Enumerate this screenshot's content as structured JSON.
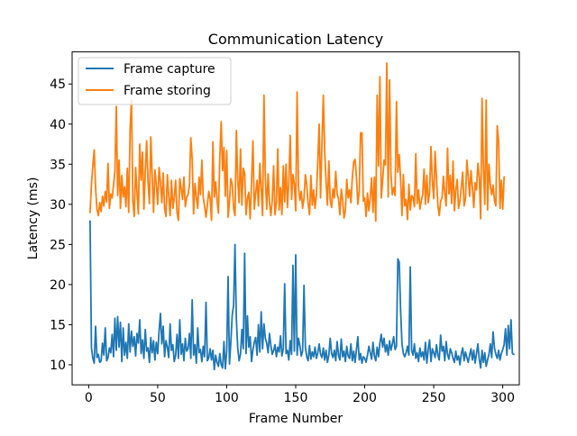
{
  "chart_data": {
    "type": "line",
    "title": "Communication Latency",
    "xlabel": "Frame Number",
    "ylabel": "Latency (ms)",
    "xlim": [
      -12,
      312
    ],
    "ylim": [
      7.5,
      49.0
    ],
    "xticks": [
      0,
      50,
      100,
      150,
      200,
      250,
      300
    ],
    "yticks": [
      10,
      15,
      20,
      25,
      30,
      35,
      40,
      45
    ],
    "grid": false,
    "legend": "upper-left",
    "x_start": 1,
    "series": [
      {
        "name": "Frame capture",
        "color": "#1f77b4",
        "values": [
          27.9,
          12.2,
          10.8,
          10.2,
          14.8,
          10.9,
          11.3,
          10.3,
          10.5,
          12.7,
          11.2,
          14.6,
          10.5,
          10.9,
          12.1,
          11.5,
          13.8,
          11.0,
          15.8,
          11.8,
          16.0,
          12.2,
          15.3,
          10.4,
          14.6,
          11.2,
          12.8,
          10.8,
          15.1,
          11.6,
          14.2,
          12.3,
          13.5,
          11.1,
          13.9,
          12.7,
          15.6,
          11.4,
          13.1,
          10.8,
          14.4,
          11.7,
          12.1,
          10.3,
          13.4,
          11.5,
          13.0,
          10.6,
          12.8,
          11.4,
          14.2,
          16.4,
          12.6,
          14.8,
          11.0,
          13.0,
          12.2,
          10.9,
          15.1,
          11.8,
          12.5,
          10.4,
          11.2,
          13.8,
          10.8,
          15.6,
          11.3,
          12.6,
          10.5,
          13.3,
          11.7,
          12.0,
          13.9,
          10.8,
          18.1,
          11.2,
          12.5,
          10.2,
          14.6,
          11.5,
          11.9,
          10.4,
          12.3,
          11.0,
          17.8,
          10.5,
          10.9,
          12.0,
          10.6,
          11.8,
          9.4,
          11.2,
          10.3,
          9.8,
          11.4,
          10.0,
          9.6,
          12.9,
          9.5,
          11.7,
          21.0,
          10.1,
          12.8,
          16.2,
          17.4,
          25.0,
          15.7,
          12.1,
          10.5,
          11.3,
          14.4,
          12.0,
          23.9,
          11.4,
          16.1,
          12.2,
          13.5,
          10.4,
          11.9,
          12.8,
          13.4,
          11.2,
          15.0,
          11.6,
          16.6,
          12.0,
          15.1,
          13.3,
          12.7,
          11.5,
          13.9,
          12.4,
          11.3,
          11.8,
          12.5,
          11.0,
          12.2,
          11.6,
          13.6,
          11.1,
          12.0,
          20.1,
          11.4,
          11.8,
          10.6,
          13.0,
          11.3,
          22.4,
          11.7,
          23.7,
          11.2,
          13.3,
          12.4,
          11.1,
          11.7,
          19.9,
          12.2,
          11.0,
          10.5,
          12.4,
          10.7,
          11.6,
          11.0,
          12.2,
          10.8,
          11.5,
          12.6,
          11.3,
          10.9,
          12.1,
          10.6,
          11.8,
          10.3,
          11.2,
          13.3,
          11.4,
          10.9,
          11.8,
          10.5,
          12.9,
          11.2,
          10.6,
          13.2,
          11.0,
          11.7,
          10.4,
          12.3,
          11.1,
          10.8,
          12.6,
          10.5,
          11.7,
          10.3,
          11.9,
          13.5,
          10.6,
          11.4,
          10.2,
          11.0,
          10.8,
          10.3,
          11.2,
          12.3,
          11.5,
          10.7,
          12.8,
          11.1,
          10.5,
          12.2,
          11.0,
          12.7,
          13.8,
          12.2,
          13.3,
          11.6,
          12.5,
          11.2,
          13.0,
          11.8,
          12.6,
          13.5,
          11.9,
          12.3,
          23.2,
          22.8,
          16.8,
          12.6,
          11.4,
          11.0,
          11.5,
          12.3,
          11.2,
          22.2,
          11.8,
          11.2,
          12.6,
          10.8,
          11.5,
          10.4,
          12.1,
          11.0,
          11.6,
          10.6,
          12.8,
          10.2,
          11.9,
          13.1,
          10.4,
          12.0,
          11.5,
          10.9,
          12.5,
          11.2,
          10.6,
          13.7,
          11.7,
          12.3,
          10.5,
          12.9,
          11.3,
          10.7,
          12.0,
          11.5,
          10.8,
          10.3,
          11.7,
          10.6,
          11.1,
          10.0,
          11.4,
          12.1,
          10.5,
          11.6,
          10.9,
          10.3,
          11.2,
          12.0,
          10.6,
          11.8,
          10.2,
          11.4,
          12.6,
          10.7,
          9.6,
          11.8,
          10.3,
          11.5,
          9.8,
          10.6,
          11.3,
          12.6,
          10.9,
          14.1,
          12.1,
          11.3,
          10.8,
          11.8,
          10.6,
          11.4,
          11.9,
          12.5,
          14.5,
          11.2,
          14.9,
          12.0,
          15.6,
          11.4,
          11.3
        ]
      },
      {
        "name": "Frame storing",
        "color": "#ff7f0e",
        "values": [
          29.0,
          32.5,
          34.8,
          36.8,
          32.0,
          29.4,
          28.6,
          30.2,
          29.1,
          31.0,
          29.8,
          31.6,
          30.3,
          35.1,
          29.5,
          31.3,
          30.8,
          32.4,
          34.1,
          42.2,
          31.1,
          35.5,
          29.5,
          33.6,
          30.9,
          32.2,
          29.7,
          34.5,
          29.0,
          39.3,
          43.0,
          30.4,
          28.5,
          34.6,
          31.5,
          28.8,
          37.5,
          33.0,
          36.5,
          29.4,
          34.2,
          37.9,
          32.8,
          30.1,
          38.4,
          33.5,
          29.0,
          34.3,
          32.5,
          30.0,
          34.6,
          32.8,
          30.2,
          33.9,
          29.5,
          28.5,
          33.7,
          31.0,
          28.6,
          33.0,
          29.5,
          30.8,
          33.0,
          29.0,
          28.0,
          33.2,
          32.0,
          30.6,
          33.4,
          29.7,
          30.9,
          31.2,
          32.4,
          38.3,
          35.6,
          28.8,
          32.6,
          30.9,
          29.5,
          33.4,
          31.2,
          35.5,
          30.8,
          29.8,
          28.4,
          30.0,
          31.6,
          30.7,
          28.0,
          37.8,
          30.9,
          32.8,
          30.5,
          28.9,
          35.8,
          40.3,
          34.2,
          37.1,
          31.0,
          36.7,
          28.4,
          30.4,
          33.2,
          32.5,
          29.5,
          28.6,
          39.2,
          33.0,
          30.2,
          36.9,
          29.9,
          34.5,
          33.9,
          28.7,
          30.7,
          31.5,
          28.2,
          32.8,
          37.9,
          29.4,
          31.4,
          33.0,
          29.8,
          35.1,
          31.9,
          28.6,
          43.6,
          33.4,
          29.4,
          33.8,
          30.2,
          28.6,
          30.5,
          34.8,
          28.7,
          30.3,
          36.9,
          29.3,
          32.1,
          28.7,
          34.8,
          30.3,
          35.0,
          29.6,
          32.8,
          38.6,
          30.6,
          33.7,
          32.5,
          29.2,
          44.0,
          32.3,
          30.5,
          31.6,
          29.5,
          30.8,
          33.7,
          32.4,
          30.1,
          28.7,
          33.6,
          29.9,
          31.8,
          29.5,
          31.2,
          35.3,
          40.0,
          30.8,
          37.4,
          43.6,
          36.6,
          32.8,
          29.9,
          35.4,
          30.6,
          29.6,
          31.9,
          30.8,
          34.1,
          31.3,
          30.7,
          28.7,
          31.9,
          30.5,
          28.3,
          29.2,
          33.1,
          30.8,
          31.8,
          30.2,
          33.3,
          35.3,
          35.6,
          33.4,
          30.0,
          31.6,
          38.9,
          38.9,
          30.4,
          30.8,
          28.5,
          31.4,
          29.2,
          30.9,
          33.3,
          29.0,
          33.4,
          27.9,
          43.6,
          34.8,
          45.9,
          30.8,
          33.0,
          35.5,
          34.9,
          47.6,
          30.9,
          45.5,
          33.7,
          31.2,
          32.1,
          31.1,
          42.8,
          34.0,
          36.2,
          33.1,
          28.6,
          33.7,
          29.8,
          30.6,
          28.1,
          32.5,
          29.3,
          31.1,
          30.9,
          29.7,
          36.3,
          30.1,
          31.8,
          29.4,
          30.5,
          31.2,
          34.4,
          30.0,
          33.6,
          30.2,
          31.5,
          37.2,
          32.9,
          30.7,
          36.6,
          33.2,
          29.9,
          28.6,
          30.4,
          30.8,
          33.5,
          31.4,
          29.8,
          37.0,
          31.3,
          33.6,
          30.1,
          35.4,
          29.2,
          31.8,
          33.1,
          29.5,
          30.4,
          32.1,
          34.0,
          29.8,
          30.7,
          35.5,
          33.5,
          31.0,
          34.2,
          32.1,
          29.6,
          32.7,
          31.8,
          35.1,
          33.4,
          28.2,
          43.2,
          34.6,
          30.0,
          43.0,
          29.3,
          35.0,
          32.4,
          31.2,
          32.4,
          30.5,
          29.8,
          39.8,
          37.8,
          29.5,
          33.0,
          29.4,
          33.4
        ]
      }
    ]
  }
}
